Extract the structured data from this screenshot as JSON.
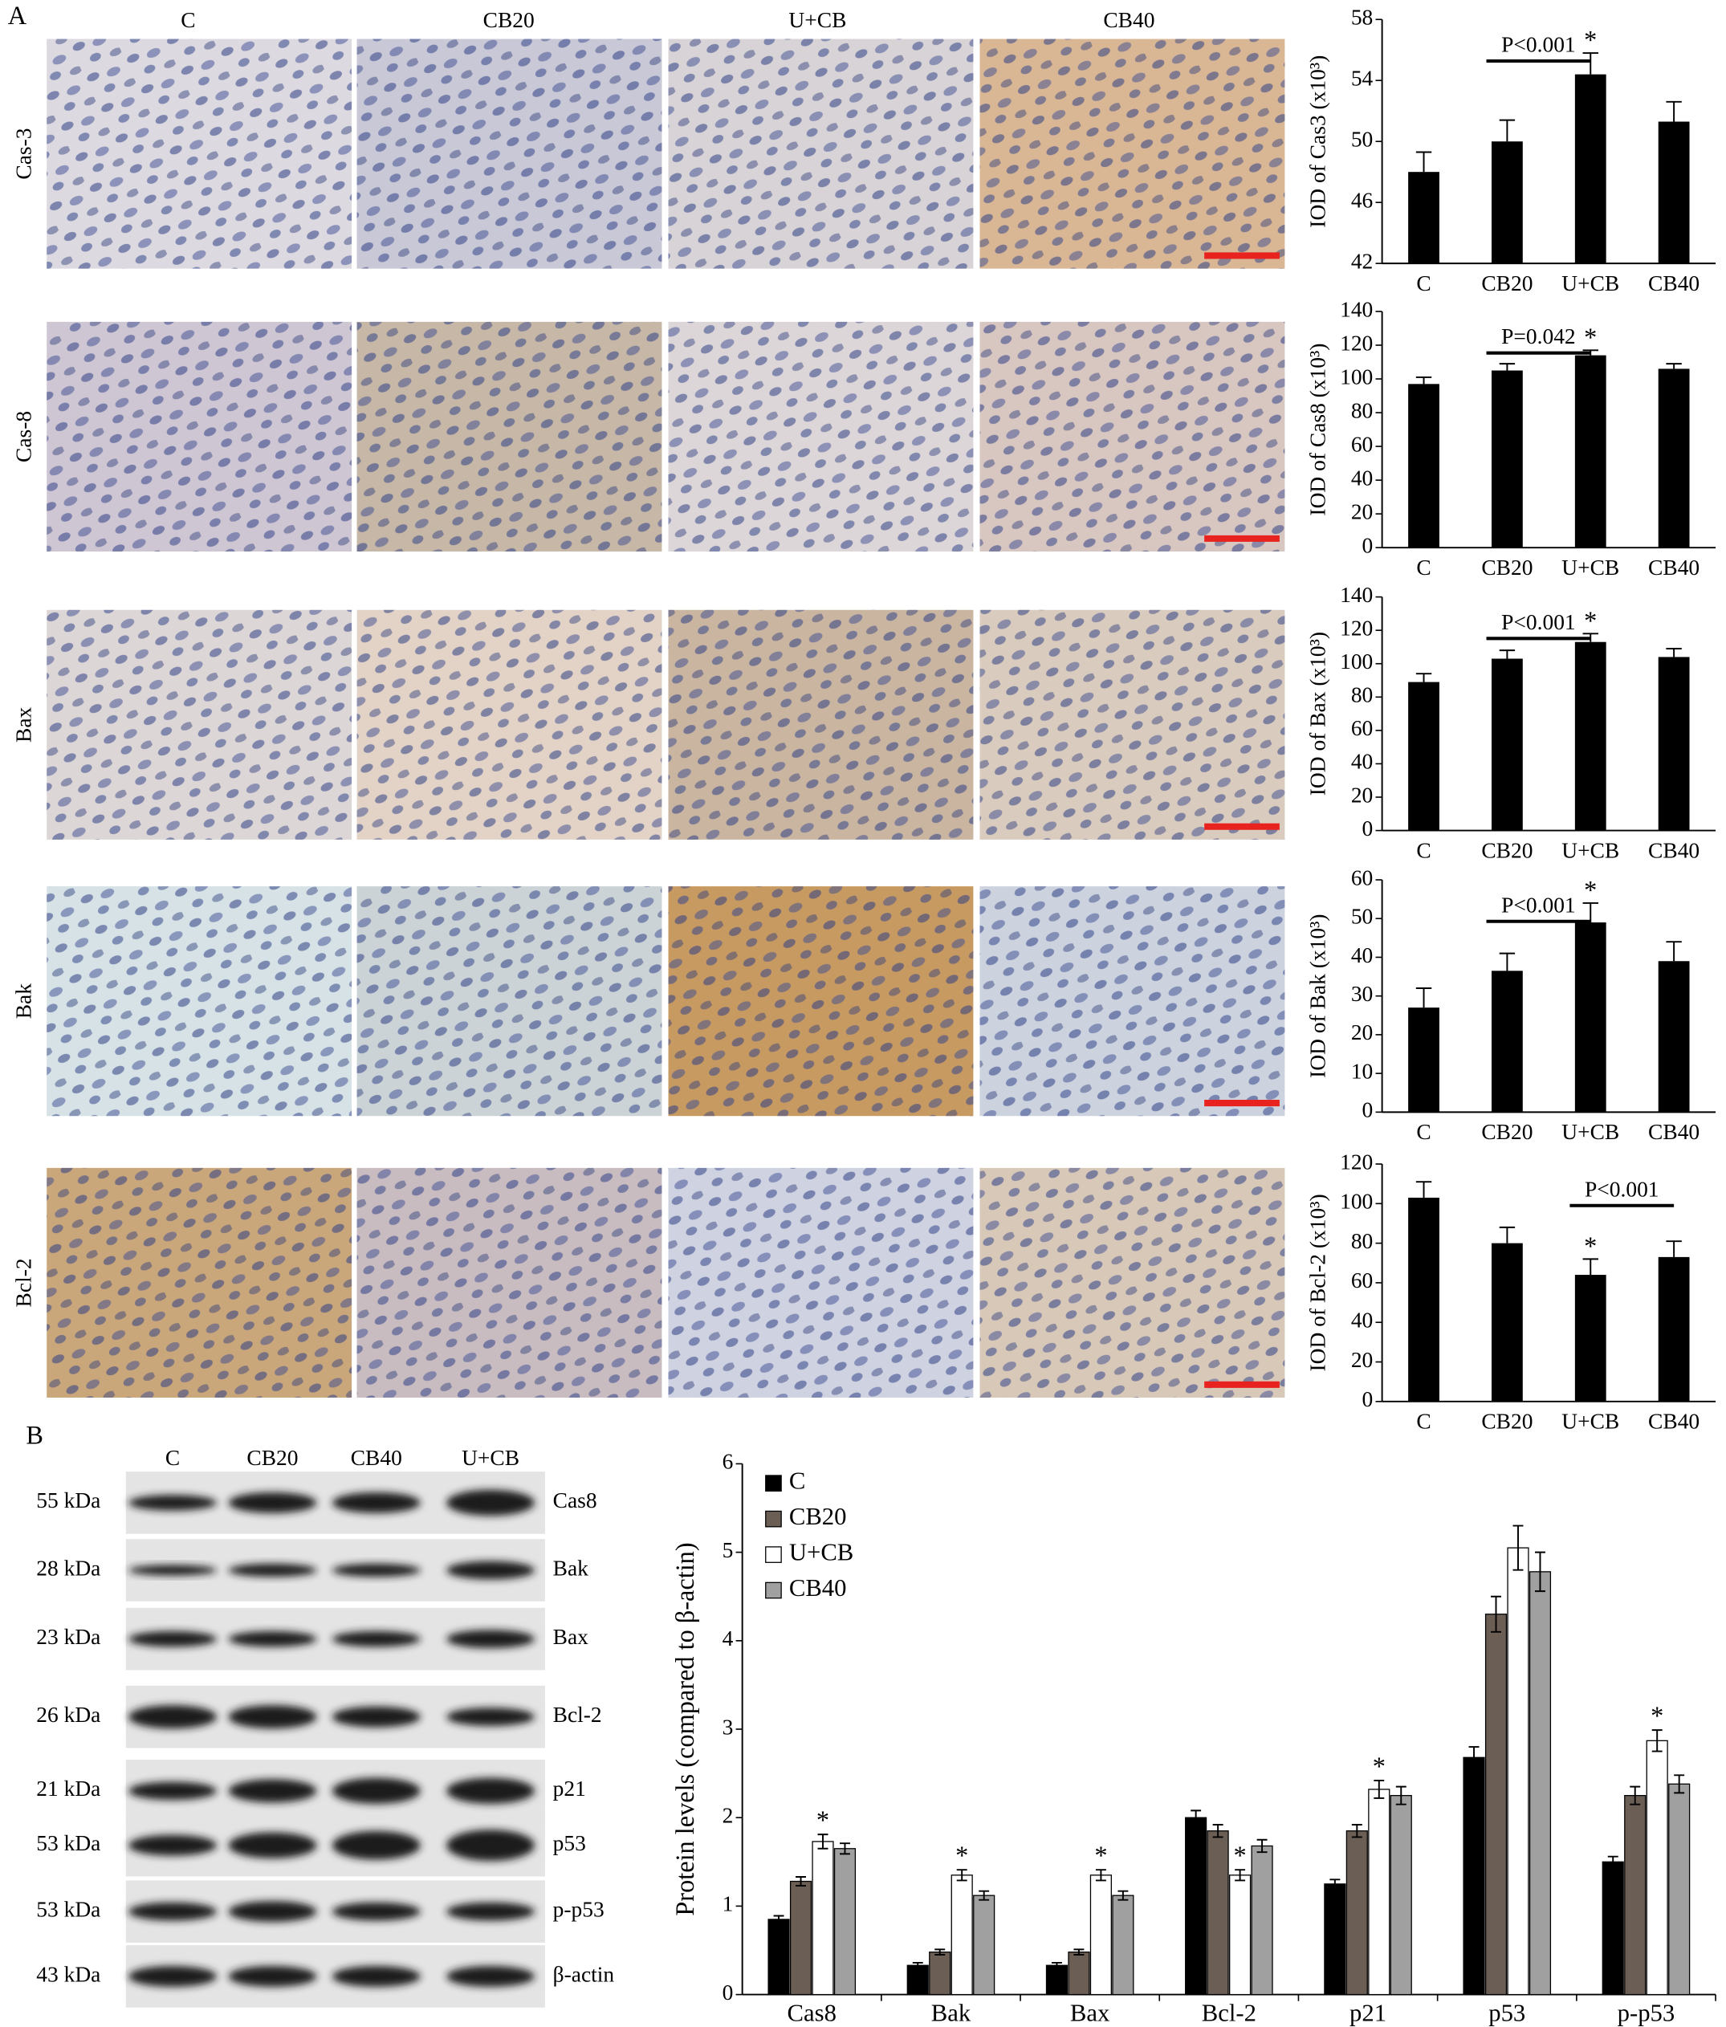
{
  "panel_a": {
    "label": "A",
    "columns": [
      "C",
      "CB20",
      "U+CB",
      "CB40"
    ],
    "rows": [
      "Cas-3",
      "Cas-8",
      "Bax",
      "Bak",
      "Bcl-2"
    ]
  },
  "panel_b": {
    "label": "B",
    "lanes": [
      "C",
      "CB20",
      "CB40",
      "U+CB"
    ],
    "blots": [
      {
        "size": "55 kDa",
        "protein": "Cas8"
      },
      {
        "size": "28 kDa",
        "protein": "Bak"
      },
      {
        "size": "23 kDa",
        "protein": "Bax"
      },
      {
        "size": "26 kDa",
        "protein": "Bcl-2"
      },
      {
        "size": "21 kDa",
        "protein": "p21"
      },
      {
        "size": "53 kDa",
        "protein": "p53"
      },
      {
        "size": "53 kDa",
        "protein": "p-p53"
      },
      {
        "size": "43 kDa",
        "protein": "β-actin"
      }
    ]
  },
  "chart_data": [
    {
      "type": "bar",
      "ylabel": "IOD of Cas3 (x10³)",
      "categories": [
        "C",
        "CB20",
        "U+CB",
        "CB40"
      ],
      "values": [
        48.0,
        50.0,
        54.4,
        51.3
      ],
      "errors": [
        1.3,
        1.4,
        1.4,
        1.3
      ],
      "color": "#000000",
      "ylim": [
        42,
        58
      ],
      "yticks": [
        42,
        46,
        50,
        54,
        58
      ],
      "annotations": [
        {
          "text": "P<0.001",
          "from": "CB20",
          "to": "U+CB"
        },
        {
          "text": "*",
          "category": "U+CB"
        }
      ]
    },
    {
      "type": "bar",
      "ylabel": "IOD of Cas8 (x10³)",
      "categories": [
        "C",
        "CB20",
        "U+CB",
        "CB40"
      ],
      "values": [
        97,
        105,
        114,
        106
      ],
      "errors": [
        4,
        4,
        3,
        3
      ],
      "color": "#000000",
      "ylim": [
        0,
        140
      ],
      "yticks": [
        0,
        20,
        40,
        60,
        80,
        100,
        120,
        140
      ],
      "annotations": [
        {
          "text": "P=0.042",
          "from": "CB20",
          "to": "U+CB"
        },
        {
          "text": "*",
          "category": "U+CB"
        }
      ]
    },
    {
      "type": "bar",
      "ylabel": "IOD of Bax (x10³)",
      "categories": [
        "C",
        "CB20",
        "U+CB",
        "CB40"
      ],
      "values": [
        89,
        103,
        113,
        104
      ],
      "errors": [
        5,
        5,
        5,
        5
      ],
      "color": "#000000",
      "ylim": [
        0,
        140
      ],
      "yticks": [
        0,
        20,
        40,
        60,
        80,
        100,
        120,
        140
      ],
      "annotations": [
        {
          "text": "P<0.001",
          "from": "CB20",
          "to": "U+CB"
        },
        {
          "text": "*",
          "category": "U+CB"
        }
      ]
    },
    {
      "type": "bar",
      "ylabel": "IOD of Bak (x10³)",
      "categories": [
        "C",
        "CB20",
        "U+CB",
        "CB40"
      ],
      "values": [
        27,
        36.5,
        49,
        39
      ],
      "errors": [
        5,
        4.5,
        5,
        5
      ],
      "color": "#000000",
      "ylim": [
        0,
        60
      ],
      "yticks": [
        0,
        10,
        20,
        30,
        40,
        50,
        60
      ],
      "annotations": [
        {
          "text": "P<0.001",
          "from": "CB20",
          "to": "U+CB"
        },
        {
          "text": "*",
          "category": "U+CB"
        }
      ]
    },
    {
      "type": "bar",
      "ylabel": "IOD of Bcl-2 (x10³)",
      "categories": [
        "C",
        "CB20",
        "U+CB",
        "CB40"
      ],
      "values": [
        103,
        80,
        64,
        73
      ],
      "errors": [
        8,
        8,
        8,
        8
      ],
      "color": "#000000",
      "ylim": [
        0,
        120
      ],
      "yticks": [
        0,
        20,
        40,
        60,
        80,
        100,
        120
      ],
      "annotations": [
        {
          "text": "P<0.001",
          "from": "U+CB",
          "to": "CB40"
        },
        {
          "text": "*",
          "category": "U+CB"
        }
      ]
    },
    {
      "type": "grouped_bar",
      "ylabel": "Protein levels (compared to β-actin)",
      "categories": [
        "Cas8",
        "Bak",
        "Bax",
        "Bcl-2",
        "p21",
        "p53",
        "p-p53"
      ],
      "ylim": [
        0,
        6
      ],
      "yticks": [
        0,
        1,
        2,
        3,
        4,
        5,
        6
      ],
      "legend": "upper left",
      "series": [
        {
          "name": "C",
          "color": "#000000",
          "values": [
            0.85,
            0.33,
            0.33,
            2.0,
            1.25,
            2.68,
            1.5
          ],
          "errors": [
            0.04,
            0.03,
            0.03,
            0.08,
            0.05,
            0.12,
            0.06
          ]
        },
        {
          "name": "CB20",
          "color": "#6b5e55",
          "values": [
            1.28,
            0.48,
            0.48,
            1.85,
            1.85,
            4.3,
            2.25
          ],
          "errors": [
            0.05,
            0.03,
            0.03,
            0.07,
            0.07,
            0.2,
            0.1
          ]
        },
        {
          "name": "U+CB",
          "color": "#ffffff",
          "values": [
            1.73,
            1.35,
            1.35,
            1.35,
            2.32,
            5.05,
            2.87
          ],
          "errors": [
            0.08,
            0.06,
            0.06,
            0.06,
            0.1,
            0.25,
            0.12
          ]
        },
        {
          "name": "CB40",
          "color": "#a0a0a0",
          "values": [
            1.65,
            1.12,
            1.12,
            1.68,
            2.25,
            4.78,
            2.38
          ],
          "errors": [
            0.06,
            0.05,
            0.05,
            0.07,
            0.1,
            0.22,
            0.1
          ]
        }
      ],
      "annotations": [
        {
          "text": "*",
          "category": "Cas8",
          "series": "U+CB"
        },
        {
          "text": "*",
          "category": "Bak",
          "series": "U+CB"
        },
        {
          "text": "*",
          "category": "Bax",
          "series": "U+CB"
        },
        {
          "text": "*",
          "category": "Bcl-2",
          "series": "U+CB"
        },
        {
          "text": "*",
          "category": "p21",
          "series": "U+CB"
        },
        {
          "text": "*",
          "category": "p-p53",
          "series": "U+CB"
        }
      ]
    }
  ]
}
